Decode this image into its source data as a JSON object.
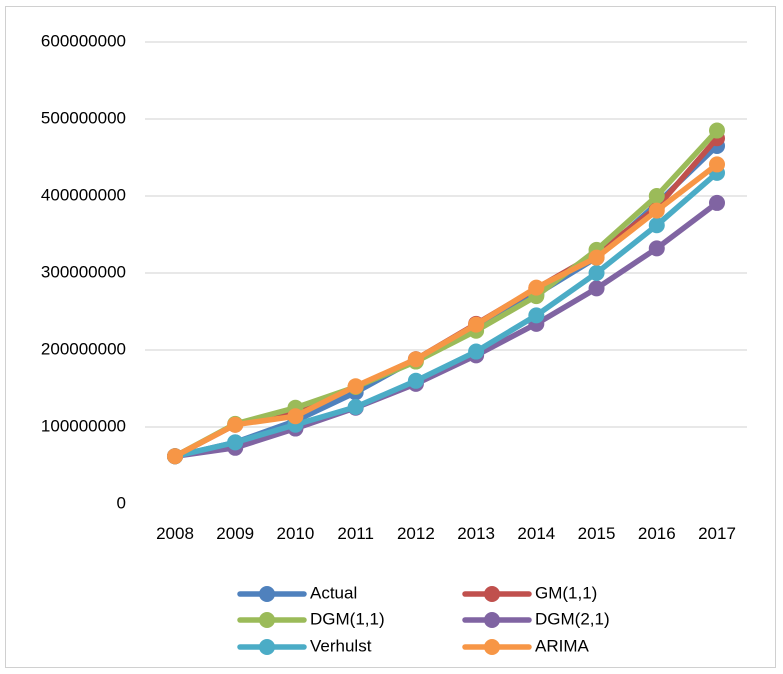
{
  "chart_data": {
    "type": "line",
    "title": "",
    "xlabel": "",
    "ylabel": "",
    "x": [
      "2008",
      "2009",
      "2010",
      "2011",
      "2012",
      "2013",
      "2014",
      "2015",
      "2016",
      "2017"
    ],
    "yticks": [
      "0",
      "100000000",
      "200000000",
      "300000000",
      "400000000",
      "500000000",
      "600000000"
    ],
    "ylim": [
      0,
      600000000
    ],
    "grid": true,
    "legend_position": "bottom",
    "series": [
      {
        "name": "Actual",
        "color": "#4F81BD",
        "values": [
          62000000,
          80000000,
          108000000,
          145000000,
          188000000,
          232000000,
          272000000,
          320000000,
          390000000,
          465000000
        ]
      },
      {
        "name": "GM(1,1)",
        "color": "#C0504D",
        "values": [
          62000000,
          103000000,
          122000000,
          152000000,
          188000000,
          234000000,
          280000000,
          325000000,
          385000000,
          475000000
        ]
      },
      {
        "name": "DGM(1,1)",
        "color": "#9BBB59",
        "values": [
          62000000,
          104000000,
          125000000,
          152000000,
          185000000,
          225000000,
          270000000,
          330000000,
          400000000,
          485000000
        ]
      },
      {
        "name": "DGM(2,1)",
        "color": "#8064A2",
        "values": [
          62000000,
          73000000,
          98000000,
          125000000,
          156000000,
          193000000,
          234000000,
          280000000,
          332000000,
          391000000
        ]
      },
      {
        "name": "Verhulst",
        "color": "#4BACC6",
        "values": [
          62000000,
          80000000,
          103000000,
          126000000,
          160000000,
          198000000,
          245000000,
          300000000,
          362000000,
          430000000
        ]
      },
      {
        "name": "ARIMA",
        "color": "#F79646",
        "values": [
          62000000,
          103000000,
          114000000,
          153000000,
          188000000,
          233000000,
          281000000,
          320000000,
          381000000,
          441000000
        ]
      }
    ]
  }
}
